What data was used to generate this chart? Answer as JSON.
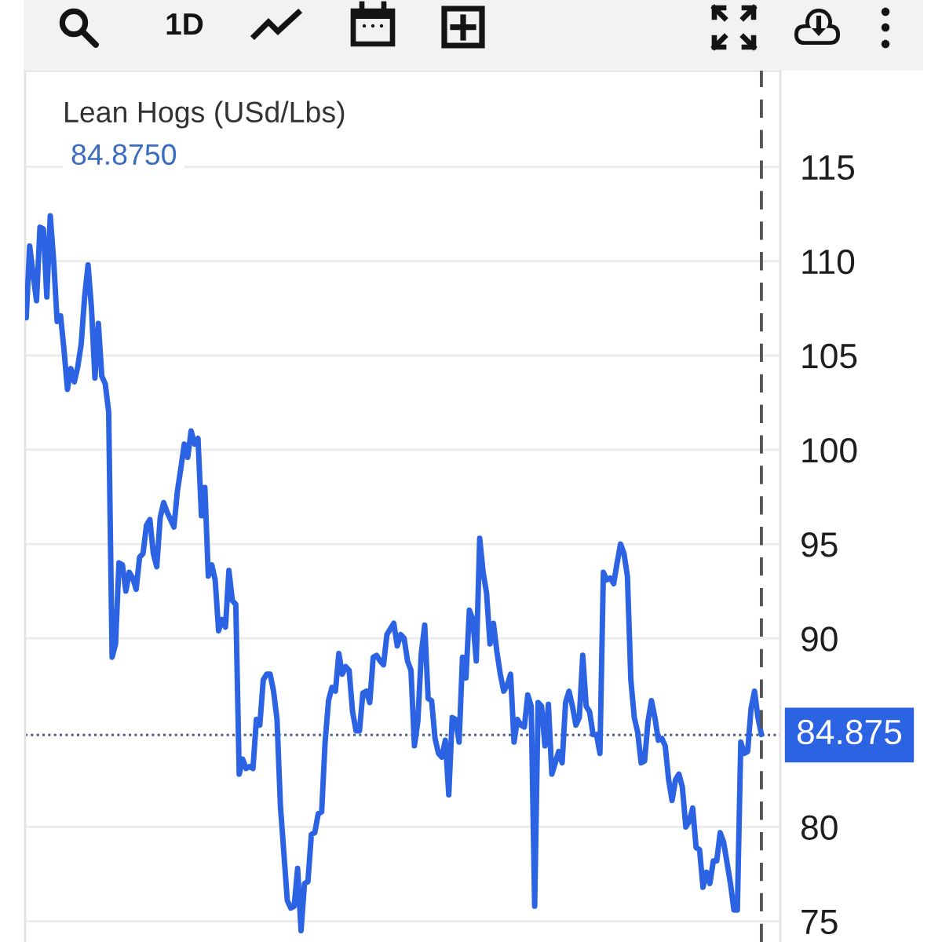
{
  "chart_data": {
    "type": "line",
    "title": "Lean Hogs (USd/Lbs)",
    "subtitle": "84.8750",
    "annotations": [
      "1D"
    ],
    "categories": [
      null,
      null,
      null,
      null,
      null,
      null,
      null,
      null,
      null,
      null,
      null,
      null,
      null,
      null,
      null,
      null,
      null,
      null,
      null,
      null,
      null,
      null,
      null,
      null,
      null,
      null,
      null,
      null,
      null,
      null,
      null,
      null,
      null,
      null,
      null,
      null,
      null,
      null,
      null,
      null,
      null,
      null,
      null,
      null,
      null,
      null,
      null,
      null,
      null,
      null,
      null,
      null,
      null,
      null,
      null,
      null,
      null,
      null,
      null,
      null,
      null,
      null,
      null,
      null,
      null,
      null,
      null,
      null,
      null,
      null,
      null,
      null,
      null,
      null,
      null,
      null,
      null,
      null,
      null,
      null,
      null,
      null,
      null,
      null,
      null,
      null,
      null,
      null,
      null,
      null,
      null,
      null,
      null,
      null,
      null,
      null,
      null,
      null,
      null,
      null,
      null,
      null,
      null,
      null,
      null,
      null,
      null,
      null,
      null,
      null,
      null,
      null,
      null,
      null,
      null,
      null,
      null,
      null,
      null,
      null,
      null,
      null,
      null,
      null,
      null,
      null,
      null,
      null,
      null,
      null,
      null,
      null,
      null,
      null,
      null,
      null,
      null,
      null,
      null,
      null,
      null,
      null,
      null,
      null,
      null,
      null,
      null,
      null,
      null,
      null,
      null,
      null,
      null,
      null,
      null,
      null,
      null,
      null,
      null,
      null,
      null,
      null,
      null,
      null,
      null,
      null,
      null,
      null,
      null,
      null,
      null,
      null,
      null,
      null,
      null,
      null,
      null,
      null,
      null,
      null,
      null,
      null,
      null,
      null,
      null,
      null,
      null,
      null,
      null,
      null,
      null,
      null,
      null,
      null,
      null,
      null,
      null,
      null,
      null,
      null,
      null,
      null,
      null,
      null,
      null,
      null,
      null,
      null,
      null,
      null,
      null,
      null,
      null,
      null,
      null
    ],
    "series": [
      {
        "color": "#2b63e3",
        "values": [
          107.0,
          110.8,
          109.3,
          107.9,
          111.8,
          111.7,
          108.1,
          112.4,
          110.0,
          106.8,
          107.1,
          105.3,
          103.2,
          104.3,
          103.6,
          104.4,
          105.6,
          108.1,
          109.8,
          107.5,
          103.8,
          106.7,
          103.9,
          103.5,
          102.0,
          89.0,
          89.7,
          94.0,
          93.9,
          92.5,
          93.5,
          93.2,
          92.6,
          94.3,
          94.5,
          96.0,
          96.3,
          94.5,
          93.8,
          96.4,
          97.2,
          96.7,
          96.3,
          95.9,
          97.8,
          99.0,
          100.3,
          99.6,
          101.0,
          100.3,
          100.6,
          96.5,
          98.0,
          93.3,
          93.9,
          93.1,
          90.4,
          91.0,
          90.6,
          93.6,
          92.0,
          91.8,
          82.8,
          83.6,
          83.1,
          83.2,
          83.1,
          85.7,
          85.4,
          87.8,
          88.1,
          88.1,
          87.2,
          85.7,
          81.1,
          78.6,
          76.1,
          75.7,
          75.8,
          77.8,
          74.5,
          77.0,
          77.1,
          79.6,
          79.7,
          80.7,
          80.8,
          84.5,
          86.7,
          87.4,
          87.2,
          89.2,
          88.1,
          88.5,
          88.3,
          86.1,
          85.1,
          85.1,
          87.1,
          87.2,
          86.6,
          89.0,
          89.1,
          88.8,
          88.6,
          90.2,
          90.5,
          90.8,
          89.6,
          90.2,
          90.0,
          88.8,
          88.3,
          84.3,
          85.6,
          89.2,
          90.7,
          86.8,
          86.7,
          84.7,
          83.9,
          83.7,
          84.6,
          81.7,
          85.8,
          85.7,
          84.5,
          89.0,
          87.9,
          91.5,
          91.0,
          88.8,
          95.3,
          93.5,
          92.4,
          89.7,
          90.8,
          89.3,
          88.1,
          87.2,
          87.5,
          88.1,
          84.5,
          85.7,
          85.4,
          85.3,
          87.0,
          86.4,
          75.8,
          86.6,
          86.4,
          84.3,
          86.5,
          82.8,
          83.4,
          84.0,
          83.4,
          86.6,
          87.2,
          86.4,
          85.4,
          85.8,
          89.1,
          86.4,
          86.1,
          84.9,
          84.9,
          83.9,
          93.5,
          93.1,
          93.2,
          92.9,
          94.0,
          95.0,
          94.5,
          93.3,
          87.8,
          85.8,
          85.0,
          83.4,
          83.5,
          85.6,
          86.7,
          85.8,
          84.6,
          84.7,
          84.3,
          82.5,
          81.4,
          82.5,
          82.8,
          82.1,
          80.0,
          80.3,
          81.0,
          78.9,
          78.8,
          76.8,
          77.6,
          77.0,
          78.2,
          78.2,
          79.7,
          79.2,
          78.1,
          77.0,
          75.6,
          75.6,
          84.5,
          83.9,
          84.0,
          86.3,
          87.2,
          85.8,
          84.9
        ]
      }
    ],
    "ylim": [
      73.9,
      120.1
    ],
    "yticks": [
      75,
      80,
      90,
      95,
      100,
      105,
      110,
      115
    ],
    "grid": "y",
    "ref_lines": [
      {
        "axis": "y",
        "value": 84.875,
        "label": "84.875",
        "color": "#4b5e86",
        "line_style": "dotted"
      }
    ]
  }
}
